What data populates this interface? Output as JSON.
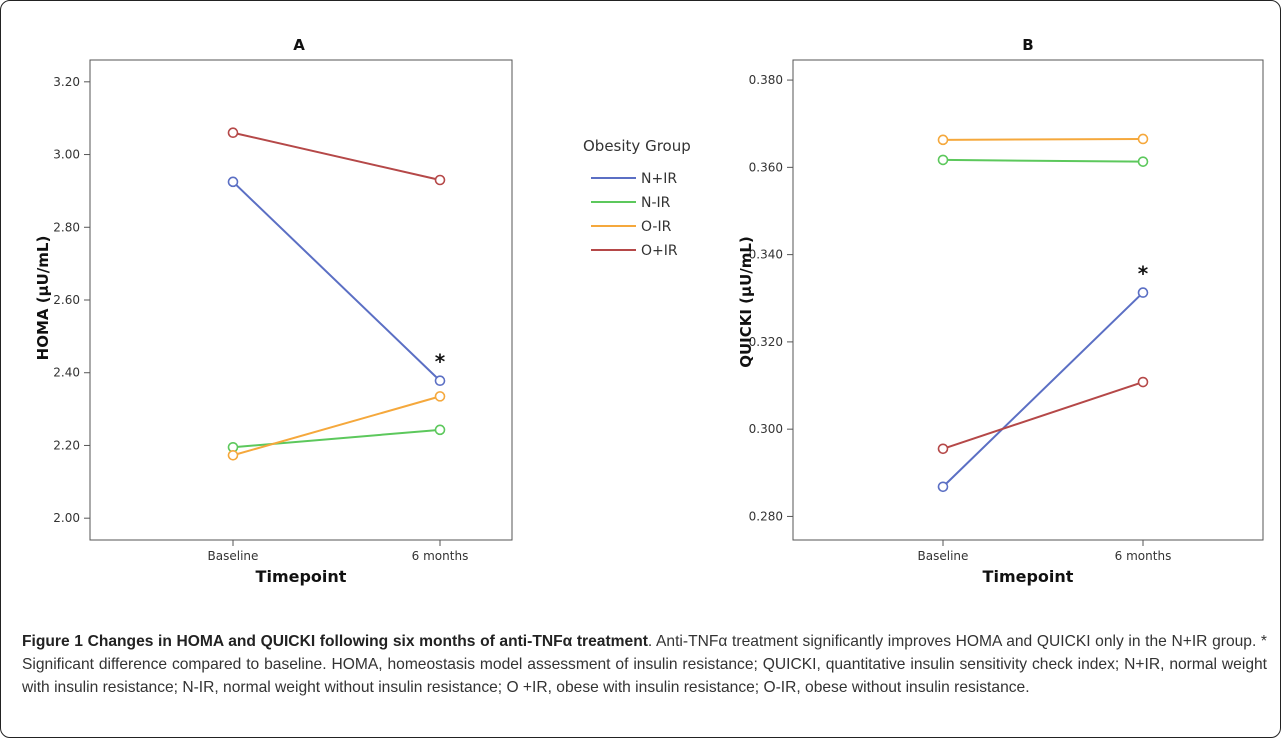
{
  "chart_data": [
    {
      "type": "line",
      "title": "A",
      "xlabel": "Timepoint",
      "ylabel": "HOMA (μU/mL)",
      "categories": [
        "Baseline",
        "6 months"
      ],
      "ylim": [
        1.94,
        3.26
      ],
      "yticks": [
        "2.00",
        "2.20",
        "2.40",
        "2.60",
        "2.80",
        "3.00",
        "3.20"
      ],
      "ytick_values": [
        2.0,
        2.2,
        2.4,
        2.6,
        2.8,
        3.0,
        3.2
      ],
      "grid": false,
      "series": [
        {
          "name": "N+IR",
          "color": "#5b6fc4",
          "values": [
            2.925,
            2.378
          ]
        },
        {
          "name": "N-IR",
          "color": "#5cc85c",
          "values": [
            2.195,
            2.243
          ]
        },
        {
          "name": "O-IR",
          "color": "#f5a83c",
          "values": [
            2.173,
            2.335
          ]
        },
        {
          "name": "O+IR",
          "color": "#b54848",
          "values": [
            3.06,
            2.93
          ]
        }
      ],
      "annotations": [
        {
          "text": "*",
          "category": "6 months",
          "series": "N+IR"
        }
      ]
    },
    {
      "type": "line",
      "title": "B",
      "xlabel": "Timepoint",
      "ylabel": "QUICKI (μU/mL)",
      "categories": [
        "Baseline",
        "6 months"
      ],
      "ylim": [
        0.2746,
        0.3846
      ],
      "yticks": [
        "0.280",
        "0.300",
        "0.320",
        "0.340",
        "0.360",
        "0.380"
      ],
      "ytick_values": [
        0.28,
        0.3,
        0.32,
        0.34,
        0.36,
        0.38
      ],
      "grid": false,
      "series": [
        {
          "name": "N+IR",
          "color": "#5b6fc4",
          "values": [
            0.2868,
            0.3313
          ]
        },
        {
          "name": "N-IR",
          "color": "#5cc85c",
          "values": [
            0.3617,
            0.3613
          ]
        },
        {
          "name": "O-IR",
          "color": "#f5a83c",
          "values": [
            0.3663,
            0.3665
          ]
        },
        {
          "name": "O+IR",
          "color": "#b54848",
          "values": [
            0.2955,
            0.3108
          ]
        }
      ],
      "annotations": [
        {
          "text": "*",
          "category": "6 months",
          "series": "N+IR"
        }
      ]
    }
  ],
  "legend": {
    "title": "Obesity Group",
    "items": [
      {
        "label": "N+IR",
        "color": "#5b6fc4"
      },
      {
        "label": "N-IR",
        "color": "#5cc85c"
      },
      {
        "label": "O-IR",
        "color": "#f5a83c"
      },
      {
        "label": "O+IR",
        "color": "#b54848"
      }
    ],
    "placement": "between panels"
  },
  "caption": {
    "bold": "Figure 1 Changes in HOMA and QUICKI following six months of anti-TNFα treatment",
    "text": ". Anti-TNFα treatment significantly improves HOMA and QUICKI only in the N+IR group. * Significant difference compared to baseline. HOMA, homeostasis model assessment of insulin resistance; QUICKI, quantitative insulin sensitivity check index; N+IR, normal weight with insulin resistance; N-IR, normal weight without insulin resistance; O +IR, obese with insulin resistance; O-IR, obese without insulin resistance."
  }
}
